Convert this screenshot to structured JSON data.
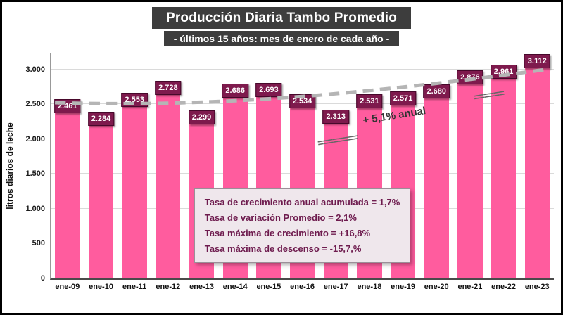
{
  "header": {
    "title": "Producción Diaria Tambo Promedio",
    "subtitle": "- últimos 15 años: mes de enero de cada año -"
  },
  "chart_data": {
    "type": "bar",
    "title": "Producción Diaria Tambo Promedio",
    "subtitle": "- últimos 15 años: mes de enero de cada año -",
    "xlabel": "",
    "ylabel": "litros diarios de leche",
    "ylim": [
      0,
      3230
    ],
    "grid": true,
    "legend": "none",
    "categories": [
      "ene-09",
      "ene-10",
      "ene-11",
      "ene-12",
      "ene-13",
      "ene-14",
      "ene-15",
      "ene-16",
      "ene-17",
      "ene-18",
      "ene-19",
      "ene-20",
      "ene-21",
      "ene-22",
      "ene-23"
    ],
    "values": [
      2461,
      2284,
      2553,
      2728,
      2299,
      2686,
      2693,
      2534,
      2313,
      2531,
      2571,
      2680,
      2876,
      2961,
      3112
    ],
    "value_labels": [
      "2.461",
      "2.284",
      "2.553",
      "2.728",
      "2.299",
      "2.686",
      "2.693",
      "2.534",
      "2.313",
      "2.531",
      "2.571",
      "2.680",
      "2.876",
      "2.961",
      "3.112"
    ],
    "yticks": [
      {
        "value": 0,
        "label": "0"
      },
      {
        "value": 500,
        "label": "500"
      },
      {
        "value": 1000,
        "label": "1.000"
      },
      {
        "value": 1500,
        "label": "1.500"
      },
      {
        "value": 2000,
        "label": "2.000"
      },
      {
        "value": 2500,
        "label": "2.500"
      },
      {
        "value": 3000,
        "label": "3.000"
      }
    ],
    "trend": {
      "style": "dashed",
      "annotation": "+ 5,1% anual",
      "emphasis_left": "========",
      "emphasis_right": "======"
    },
    "stats_box": {
      "lines": [
        "Tasa de crecimiento anual acumulada = 1,7%",
        "Tasa de variación Promedio = 2,1%",
        "Tasa máxima de crecimiento = +16,8%",
        "Tasa máxima de descenso = -15,7,%"
      ]
    },
    "colors": {
      "bar": "#FF5C9E",
      "bar_label_bg": "#7E1A4D",
      "trend_line": "#B5B5B5",
      "stats_text": "#6E1B4E",
      "title_bg": "#3D3D3D"
    }
  }
}
